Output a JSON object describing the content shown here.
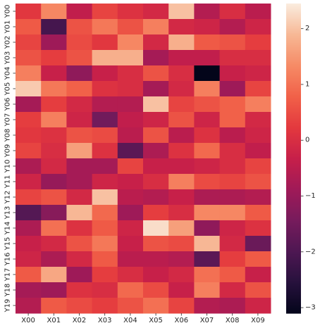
{
  "chart_data": {
    "type": "heatmap",
    "title": "",
    "xlabel": "",
    "ylabel": "",
    "x_labels": [
      "X00",
      "X01",
      "X02",
      "X03",
      "X04",
      "X05",
      "X06",
      "X07",
      "X08",
      "X09"
    ],
    "y_labels": [
      "Y00",
      "Y01",
      "Y02",
      "Y03",
      "Y04",
      "Y05",
      "Y06",
      "Y07",
      "Y08",
      "Y09",
      "Y10",
      "Y11",
      "Y12",
      "Y13",
      "Y14",
      "Y15",
      "Y16",
      "Y17",
      "Y18",
      "Y19"
    ],
    "colorbar": {
      "min": -3.1,
      "max": 2.45,
      "ticks": [
        2,
        1,
        0,
        -1,
        -2,
        -3
      ]
    },
    "values": [
      [
        0.2,
        1.3,
        -0.4,
        0.4,
        0.1,
        -0.1,
        2.0,
        -0.6,
        0.0,
        -0.5
      ],
      [
        0.7,
        -2.1,
        0.6,
        1.1,
        0.6,
        1.2,
        -0.1,
        -0.2,
        -0.6,
        -0.2
      ],
      [
        0.4,
        -0.9,
        0.5,
        0.2,
        1.3,
        -0.1,
        1.8,
        0.7,
        0.6,
        0.3
      ],
      [
        0.6,
        0.3,
        0.6,
        1.8,
        1.8,
        -0.8,
        -0.4,
        -0.4,
        0.0,
        0.0
      ],
      [
        1.2,
        -0.3,
        -1.1,
        -0.3,
        0.0,
        0.6,
        0.0,
        -3.1,
        -0.3,
        -0.2
      ],
      [
        2.1,
        1.1,
        0.8,
        0.1,
        0.0,
        -0.8,
        -0.1,
        1.2,
        -0.9,
        0.4
      ],
      [
        -0.8,
        0.3,
        -0.1,
        -0.6,
        -0.6,
        2.0,
        0.4,
        0.6,
        0.8,
        1.2
      ],
      [
        0.3,
        1.2,
        -0.2,
        -1.5,
        -0.4,
        -0.2,
        0.6,
        -0.2,
        0.8,
        -0.1
      ],
      [
        0.2,
        0.1,
        0.6,
        0.5,
        -0.5,
        0.6,
        -0.5,
        0.1,
        -0.5,
        -0.2
      ],
      [
        0.4,
        0.0,
        1.6,
        0.1,
        -1.8,
        -0.7,
        0.1,
        0.9,
        0.0,
        -0.4
      ],
      [
        -0.7,
        -0.1,
        -0.8,
        -0.8,
        0.4,
        -0.3,
        -0.3,
        -0.2,
        0.0,
        0.4
      ],
      [
        -0.2,
        -1.0,
        -0.8,
        -0.2,
        -0.3,
        0.0,
        1.2,
        0.5,
        0.4,
        0.6
      ],
      [
        0.4,
        0.6,
        -0.1,
        2.0,
        -0.5,
        -0.6,
        -0.3,
        -0.7,
        -0.7,
        -0.6
      ],
      [
        -1.9,
        -1.2,
        1.9,
        0.9,
        -0.9,
        0.3,
        0.0,
        1.3,
        1.3,
        0.7
      ],
      [
        -0.7,
        1.0,
        0.1,
        0.7,
        -0.2,
        2.3,
        1.6,
        -1.1,
        -0.2,
        0.1
      ],
      [
        -0.3,
        -0.1,
        0.6,
        1.1,
        -0.3,
        0.6,
        0.5,
        1.9,
        -0.1,
        -1.6
      ],
      [
        -0.2,
        -0.7,
        -0.1,
        0.7,
        -0.5,
        -0.5,
        -0.6,
        -1.8,
        0.3,
        0.7
      ],
      [
        0.7,
        1.7,
        -0.9,
        0.3,
        0.0,
        -0.3,
        -0.1,
        1.0,
        0.7,
        -0.3
      ],
      [
        -0.8,
        -0.9,
        0.1,
        0.0,
        0.9,
        0.5,
        -0.3,
        1.2,
        -0.1,
        0.6
      ],
      [
        -0.6,
        0.7,
        0.5,
        0.3,
        0.6,
        1.0,
        0.4,
        -0.6,
        -0.7,
        -0.2
      ]
    ]
  }
}
